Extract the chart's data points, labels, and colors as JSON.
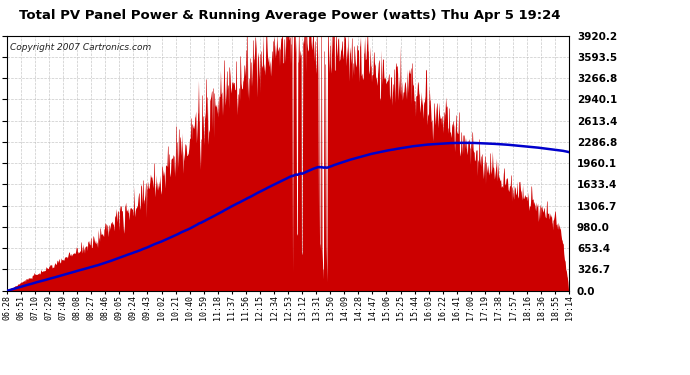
{
  "title": "Total PV Panel Power & Running Average Power (watts) Thu Apr 5 19:24",
  "copyright": "Copyright 2007 Cartronics.com",
  "bg_color": "#ffffff",
  "plot_bg_color": "#ffffff",
  "bar_color": "#cc0000",
  "line_color": "#0000cc",
  "grid_color": "#bbbbbb",
  "ymin": 0.0,
  "ymax": 3920.2,
  "yticks": [
    0.0,
    326.7,
    653.4,
    980.0,
    1306.7,
    1633.4,
    1960.1,
    2286.8,
    2613.4,
    2940.1,
    3266.8,
    3593.5,
    3920.2
  ],
  "xtick_labels": [
    "06:28",
    "06:51",
    "07:10",
    "07:29",
    "07:49",
    "08:08",
    "08:27",
    "08:46",
    "09:05",
    "09:24",
    "09:43",
    "10:02",
    "10:21",
    "10:40",
    "10:59",
    "11:18",
    "11:37",
    "11:56",
    "12:15",
    "12:34",
    "12:53",
    "13:12",
    "13:31",
    "13:50",
    "14:09",
    "14:28",
    "14:47",
    "15:06",
    "15:25",
    "15:44",
    "16:03",
    "16:22",
    "16:41",
    "17:00",
    "17:19",
    "17:38",
    "17:57",
    "18:16",
    "18:36",
    "18:55",
    "19:14"
  ],
  "n_points": 820
}
